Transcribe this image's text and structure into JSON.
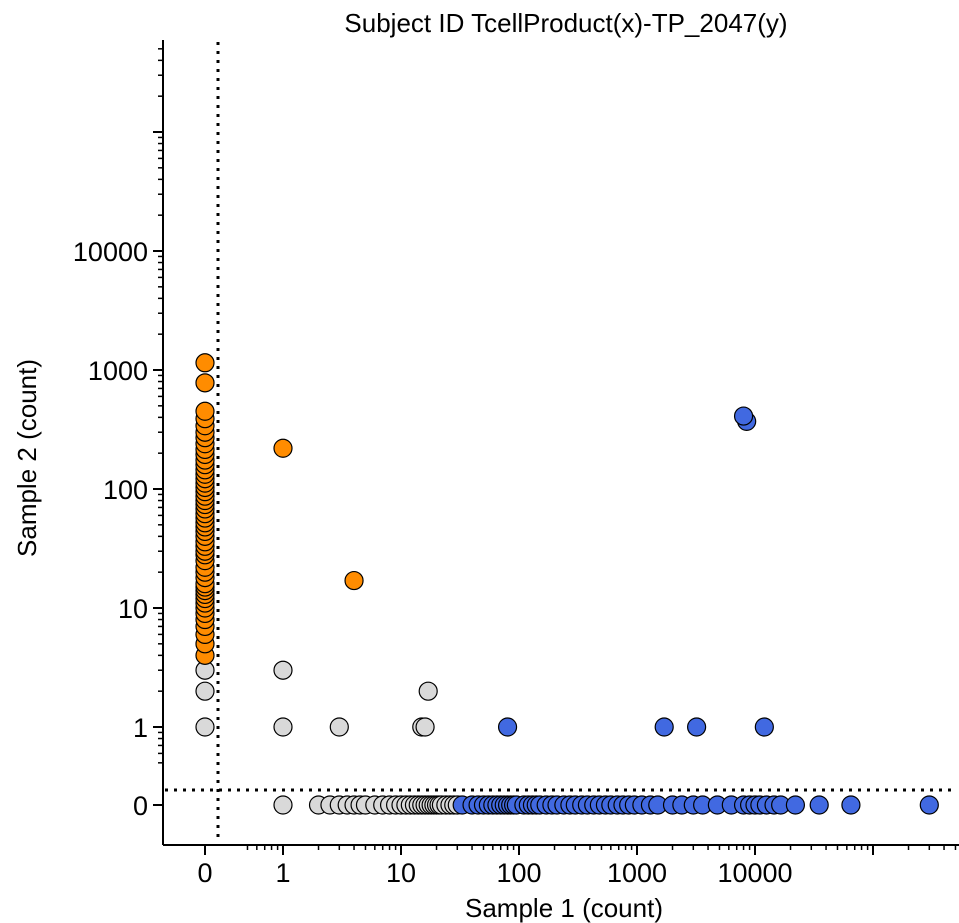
{
  "chart_data": {
    "type": "scatter",
    "title": "Subject ID TcellProduct(x)-TP_2047(y)",
    "xlabel": "Sample 1 (count)",
    "ylabel": "Sample 2 (count)",
    "x_scale": "log10 with zero column",
    "y_scale": "log10 with zero row",
    "x_ticks": [
      "0",
      "1",
      "10",
      "100",
      "1000",
      "10000"
    ],
    "y_ticks": [
      "0",
      "1",
      "10",
      "100",
      "1000",
      "10000"
    ],
    "threshold_lines": "dotted",
    "grid": false,
    "colors": {
      "sample2_only": "#ff8c00",
      "sample1_only": "#4169e1",
      "both": "#4169e1",
      "singletons": "#d9d9d9",
      "edge": "#000000"
    },
    "series": [
      {
        "category": "sample2_only",
        "points": [
          [
            0,
            4
          ],
          [
            0,
            5
          ],
          [
            0,
            6
          ],
          [
            0,
            7
          ],
          [
            0,
            8
          ],
          [
            0,
            9
          ],
          [
            0,
            10
          ],
          [
            0,
            11
          ],
          [
            0,
            12
          ],
          [
            0,
            13
          ],
          [
            0,
            14
          ],
          [
            0,
            15
          ],
          [
            0,
            16
          ],
          [
            0,
            18
          ],
          [
            0,
            20
          ],
          [
            0,
            22
          ],
          [
            0,
            25
          ],
          [
            0,
            28
          ],
          [
            0,
            30
          ],
          [
            0,
            33
          ],
          [
            0,
            36
          ],
          [
            0,
            40
          ],
          [
            0,
            44
          ],
          [
            0,
            48
          ],
          [
            0,
            52
          ],
          [
            0,
            57
          ],
          [
            0,
            62
          ],
          [
            0,
            68
          ],
          [
            0,
            74
          ],
          [
            0,
            80
          ],
          [
            0,
            87
          ],
          [
            0,
            95
          ],
          [
            0,
            103
          ],
          [
            0,
            112
          ],
          [
            0,
            122
          ],
          [
            0,
            133
          ],
          [
            0,
            145
          ],
          [
            0,
            160
          ],
          [
            0,
            175
          ],
          [
            0,
            195
          ],
          [
            0,
            215
          ],
          [
            0,
            240
          ],
          [
            0,
            270
          ],
          [
            0,
            300
          ],
          [
            0,
            340
          ],
          [
            0,
            390
          ],
          [
            0,
            450
          ],
          [
            0,
            780
          ],
          [
            0,
            1150
          ],
          [
            1,
            220
          ],
          [
            4,
            17
          ]
        ]
      },
      {
        "category": "singletons",
        "points": [
          [
            0,
            1
          ],
          [
            0,
            2
          ],
          [
            0,
            3
          ],
          [
            1,
            1
          ],
          [
            1,
            3
          ],
          [
            3,
            1
          ],
          [
            15,
            1
          ],
          [
            16,
            1
          ],
          [
            17,
            2
          ],
          [
            1,
            0
          ],
          [
            2,
            0
          ],
          [
            2.5,
            0
          ],
          [
            3,
            0
          ],
          [
            3.5,
            0
          ],
          [
            4,
            0
          ],
          [
            4.5,
            0
          ],
          [
            5,
            0
          ],
          [
            6,
            0
          ],
          [
            7,
            0
          ],
          [
            8,
            0
          ],
          [
            9,
            0
          ],
          [
            10,
            0
          ],
          [
            11,
            0
          ],
          [
            12,
            0
          ],
          [
            13,
            0
          ],
          [
            14,
            0
          ],
          [
            15,
            0
          ],
          [
            16,
            0
          ],
          [
            17,
            0
          ],
          [
            18,
            0
          ],
          [
            19,
            0
          ],
          [
            20,
            0
          ],
          [
            21,
            0
          ],
          [
            22,
            0
          ],
          [
            24,
            0
          ],
          [
            26,
            0
          ],
          [
            28,
            0
          ],
          [
            30,
            0
          ]
        ]
      },
      {
        "category": "sample1_only",
        "points": [
          [
            33,
            0
          ],
          [
            40,
            0
          ],
          [
            45,
            0
          ],
          [
            50,
            0
          ],
          [
            55,
            0
          ],
          [
            60,
            0
          ],
          [
            65,
            0
          ],
          [
            70,
            0
          ],
          [
            75,
            0
          ],
          [
            80,
            0
          ],
          [
            85,
            0
          ],
          [
            90,
            0
          ],
          [
            95,
            0
          ],
          [
            110,
            0
          ],
          [
            120,
            0
          ],
          [
            130,
            0
          ],
          [
            140,
            0
          ],
          [
            150,
            0
          ],
          [
            170,
            0
          ],
          [
            190,
            0
          ],
          [
            210,
            0
          ],
          [
            240,
            0
          ],
          [
            270,
            0
          ],
          [
            300,
            0
          ],
          [
            340,
            0
          ],
          [
            380,
            0
          ],
          [
            430,
            0
          ],
          [
            480,
            0
          ],
          [
            540,
            0
          ],
          [
            600,
            0
          ],
          [
            680,
            0
          ],
          [
            760,
            0
          ],
          [
            850,
            0
          ],
          [
            950,
            0
          ],
          [
            1100,
            0
          ],
          [
            1300,
            0
          ],
          [
            1500,
            0
          ],
          [
            2000,
            0
          ],
          [
            2400,
            0
          ],
          [
            3000,
            0
          ],
          [
            3600,
            0
          ],
          [
            4800,
            0
          ],
          [
            6300,
            0
          ],
          [
            8000,
            0
          ],
          [
            9000,
            0
          ],
          [
            10000,
            0
          ],
          [
            11000,
            0
          ],
          [
            12500,
            0
          ],
          [
            14500,
            0
          ],
          [
            16500,
            0
          ],
          [
            22000,
            0
          ],
          [
            35000,
            0
          ],
          [
            65000,
            0
          ],
          [
            300000,
            0
          ]
        ]
      },
      {
        "category": "both",
        "points": [
          [
            80,
            1
          ],
          [
            1700,
            1
          ],
          [
            3200,
            1
          ],
          [
            12000,
            1
          ],
          [
            8500,
            370
          ],
          [
            8000,
            410
          ]
        ]
      }
    ]
  }
}
